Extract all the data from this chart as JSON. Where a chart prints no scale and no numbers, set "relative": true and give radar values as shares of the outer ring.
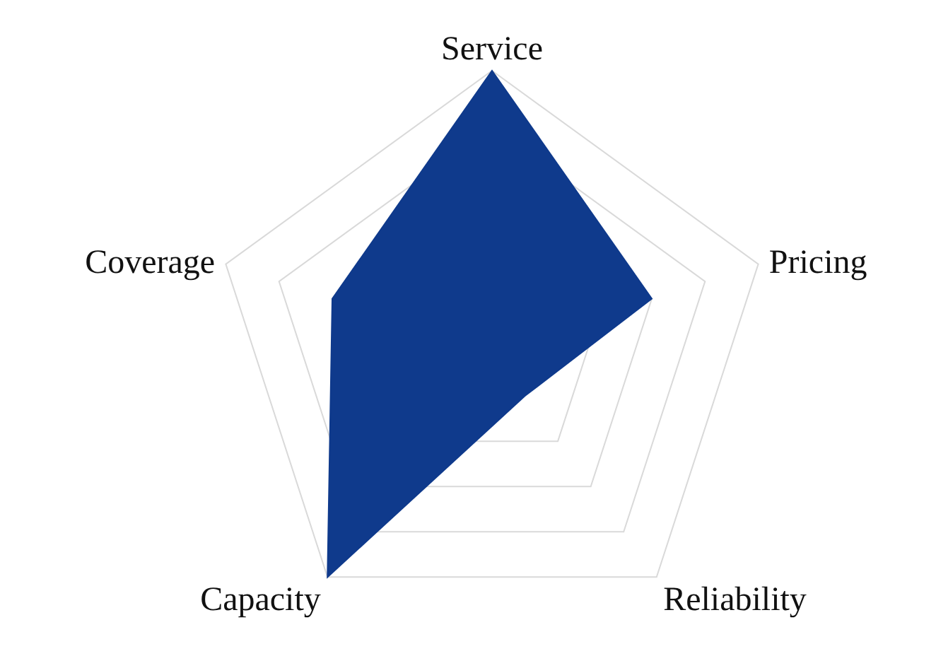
{
  "chart_data": {
    "type": "radar",
    "relative": true,
    "grid": true,
    "categories": [
      "Service",
      "Pricing",
      "Reliability",
      "Capacity",
      "Coverage"
    ],
    "series": [
      {
        "color": "#0f3a8c",
        "values": [
          1,
          0.6,
          0.2,
          1,
          0.6
        ]
      }
    ]
  }
}
